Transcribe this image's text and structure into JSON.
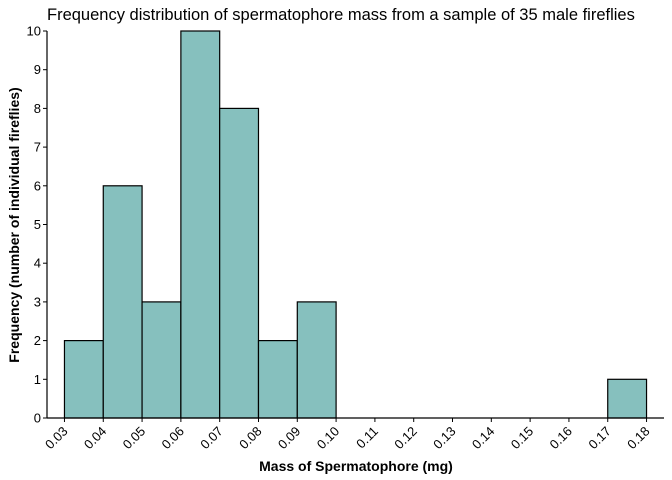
{
  "chart_data": {
    "type": "bar",
    "title": "Frequency distribution of spermatophore mass from a sample of 35 male fireflies",
    "xlabel": "Mass of Spermatophore (mg)",
    "ylabel": "Frequency (number of individual fireflies)",
    "bins": [
      {
        "start": 0.03,
        "end": 0.04,
        "count": 2
      },
      {
        "start": 0.04,
        "end": 0.05,
        "count": 6
      },
      {
        "start": 0.05,
        "end": 0.06,
        "count": 3
      },
      {
        "start": 0.06,
        "end": 0.07,
        "count": 10
      },
      {
        "start": 0.07,
        "end": 0.08,
        "count": 8
      },
      {
        "start": 0.08,
        "end": 0.09,
        "count": 2
      },
      {
        "start": 0.09,
        "end": 0.1,
        "count": 3
      },
      {
        "start": 0.1,
        "end": 0.11,
        "count": 0
      },
      {
        "start": 0.11,
        "end": 0.12,
        "count": 0
      },
      {
        "start": 0.12,
        "end": 0.13,
        "count": 0
      },
      {
        "start": 0.13,
        "end": 0.14,
        "count": 0
      },
      {
        "start": 0.14,
        "end": 0.15,
        "count": 0
      },
      {
        "start": 0.15,
        "end": 0.16,
        "count": 0
      },
      {
        "start": 0.16,
        "end": 0.17,
        "count": 0
      },
      {
        "start": 0.17,
        "end": 0.18,
        "count": 1
      }
    ],
    "x_ticks": [
      "0.03",
      "0.04",
      "0.05",
      "0.06",
      "0.07",
      "0.08",
      "0.09",
      "0.10",
      "0.11",
      "0.12",
      "0.13",
      "0.14",
      "0.15",
      "0.16",
      "0.17",
      "0.18"
    ],
    "y_ticks": [
      0,
      1,
      2,
      3,
      4,
      5,
      6,
      7,
      8,
      9,
      10
    ],
    "xlim": [
      0.0255,
      0.1845
    ],
    "ylim": [
      0,
      10
    ],
    "grid": false,
    "legend": "none",
    "bar_color": "#86c0be",
    "bar_edge_color": "#000000"
  }
}
